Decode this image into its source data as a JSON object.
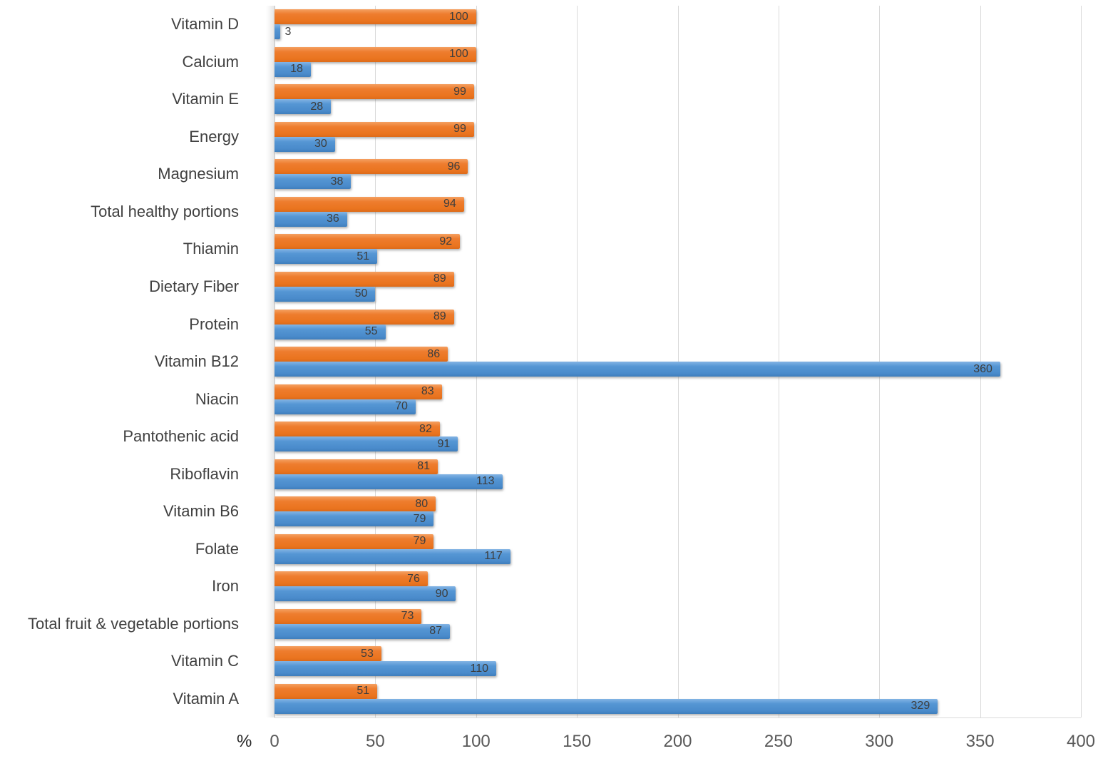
{
  "chart_data": {
    "type": "bar",
    "orientation": "horizontal",
    "title": "",
    "xlabel": "%",
    "ylabel": "",
    "xlim": [
      0,
      400
    ],
    "xticks": [
      0,
      50,
      100,
      150,
      200,
      250,
      300,
      350,
      400
    ],
    "grid": "vertical",
    "legend": "none",
    "categories": [
      "Vitamin D",
      "Calcium",
      "Vitamin E",
      "Energy",
      "Magnesium",
      "Total healthy portions",
      "Thiamin",
      "Dietary Fiber",
      "Protein",
      "Vitamin B12",
      "Niacin",
      "Pantothenic acid",
      "Riboflavin",
      "Vitamin B6",
      "Folate",
      "Iron",
      "Total fruit & vegetable portions",
      "Vitamin C",
      "Vitamin A"
    ],
    "series": [
      {
        "name": "orange-series",
        "color": "#ED7D31",
        "values": [
          100,
          100,
          99,
          99,
          96,
          94,
          92,
          89,
          89,
          86,
          83,
          82,
          81,
          80,
          79,
          76,
          73,
          53,
          51
        ]
      },
      {
        "name": "blue-series",
        "color": "#5B9BD5",
        "values": [
          3,
          18,
          28,
          30,
          38,
          36,
          51,
          50,
          55,
          360,
          70,
          91,
          113,
          79,
          117,
          90,
          87,
          110,
          329
        ]
      }
    ],
    "data_labels": "inside-end, dark gray; shown outside end when bar too short",
    "colors": {
      "gridline": "#d9d9d9",
      "axis_line": "#c2c2c2",
      "category_text": "#404040",
      "tick_text": "#595959",
      "value_text": "#3d3d3d"
    }
  }
}
